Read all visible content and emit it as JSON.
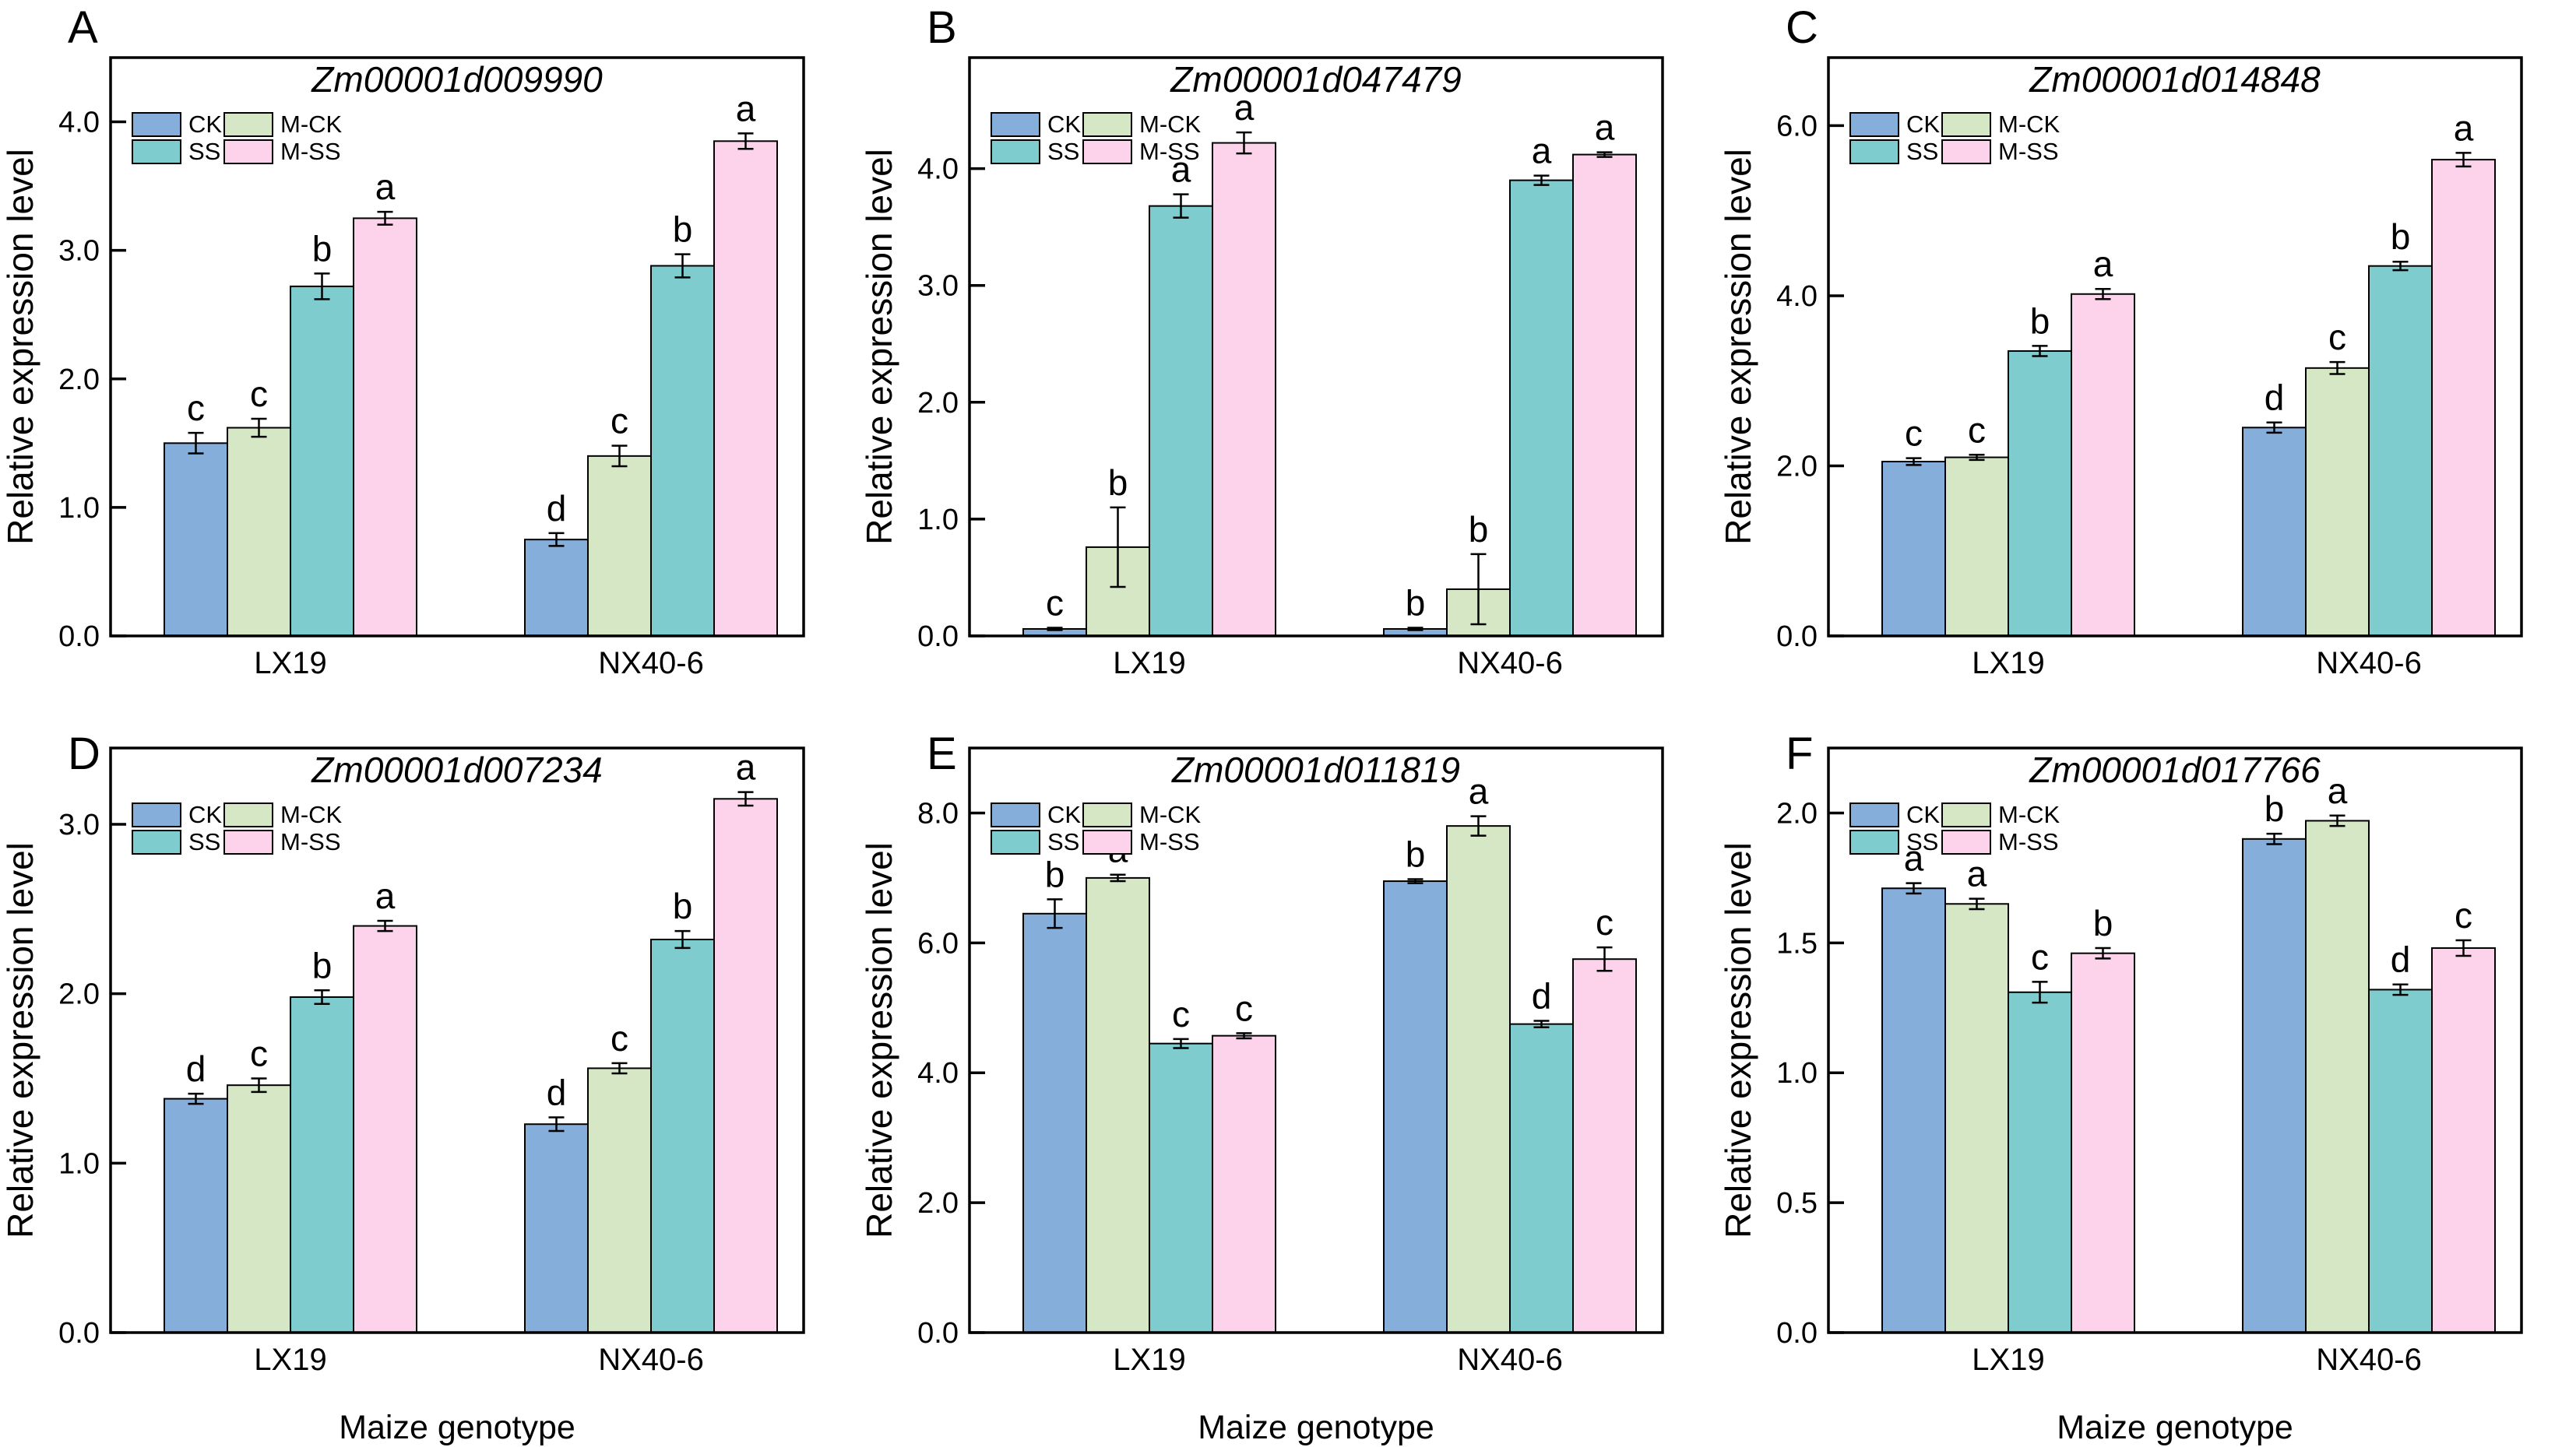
{
  "figure": {
    "ylabel": "Relative expression level",
    "xlabel": "Maize genotype",
    "categories": [
      "LX19",
      "NX40-6"
    ],
    "legend_grid": [
      [
        "CK",
        "M-CK"
      ],
      [
        "SS",
        "M-SS"
      ]
    ],
    "colors": {
      "CK": "#86AEDB",
      "M-CK": "#D6E7C6",
      "SS": "#7FCCCE",
      "M-SS": "#FDD3EC",
      "bar_border": "#000000",
      "frame": "#000000",
      "text": "#000000",
      "background": "#ffffff"
    }
  },
  "chart_data": [
    {
      "type": "bar",
      "letter": "A",
      "title": "Zm00001d009990",
      "ylabel": "Relative expression level",
      "xlabel": "",
      "categories": [
        "LX19",
        "NX40-6"
      ],
      "ylim": [
        0,
        4.5
      ],
      "yticks": [
        {
          "value": 0,
          "label": "0.0"
        },
        {
          "value": 1,
          "label": "1.0"
        },
        {
          "value": 2,
          "label": "2.0"
        },
        {
          "value": 3,
          "label": "3.0"
        },
        {
          "value": 4,
          "label": "4.0"
        }
      ],
      "series": [
        {
          "name": "CK",
          "values": [
            1.5,
            0.75
          ],
          "errors": [
            0.08,
            0.05
          ],
          "sig_letters": [
            "c",
            "d"
          ]
        },
        {
          "name": "M-CK",
          "values": [
            1.62,
            1.4
          ],
          "errors": [
            0.07,
            0.08
          ],
          "sig_letters": [
            "c",
            "c"
          ]
        },
        {
          "name": "SS",
          "values": [
            2.72,
            2.88
          ],
          "errors": [
            0.1,
            0.09
          ],
          "sig_letters": [
            "b",
            "b"
          ]
        },
        {
          "name": "M-SS",
          "values": [
            3.25,
            3.85
          ],
          "errors": [
            0.05,
            0.06
          ],
          "sig_letters": [
            "a",
            "a"
          ]
        }
      ]
    },
    {
      "type": "bar",
      "letter": "B",
      "title": "Zm00001d047479",
      "ylabel": "Relative expression level",
      "xlabel": "",
      "categories": [
        "LX19",
        "NX40-6"
      ],
      "ylim": [
        0,
        4.95
      ],
      "yticks": [
        {
          "value": 0,
          "label": "0.0"
        },
        {
          "value": 1,
          "label": "1.0"
        },
        {
          "value": 2,
          "label": "2.0"
        },
        {
          "value": 3,
          "label": "3.0"
        },
        {
          "value": 4,
          "label": "4.0"
        }
      ],
      "series": [
        {
          "name": "CK",
          "values": [
            0.06,
            0.06
          ],
          "errors": [
            0.01,
            0.01
          ],
          "sig_letters": [
            "c",
            "b"
          ]
        },
        {
          "name": "M-CK",
          "values": [
            0.76,
            0.4
          ],
          "errors": [
            0.34,
            0.3
          ],
          "sig_letters": [
            "b",
            "b"
          ]
        },
        {
          "name": "SS",
          "values": [
            3.68,
            3.9
          ],
          "errors": [
            0.1,
            0.04
          ],
          "sig_letters": [
            "a",
            "a"
          ]
        },
        {
          "name": "M-SS",
          "values": [
            4.22,
            4.12
          ],
          "errors": [
            0.09,
            0.02
          ],
          "sig_letters": [
            "a",
            "a"
          ]
        }
      ]
    },
    {
      "type": "bar",
      "letter": "C",
      "title": "Zm00001d014848",
      "ylabel": "Relative expression level",
      "xlabel": "",
      "categories": [
        "LX19",
        "NX40-6"
      ],
      "ylim": [
        0,
        6.8
      ],
      "yticks": [
        {
          "value": 0,
          "label": "0.0"
        },
        {
          "value": 2,
          "label": "2.0"
        },
        {
          "value": 4,
          "label": "4.0"
        },
        {
          "value": 6,
          "label": "6.0"
        }
      ],
      "series": [
        {
          "name": "CK",
          "values": [
            2.05,
            2.45
          ],
          "errors": [
            0.04,
            0.06
          ],
          "sig_letters": [
            "c",
            "d"
          ]
        },
        {
          "name": "M-CK",
          "values": [
            2.1,
            3.15
          ],
          "errors": [
            0.03,
            0.07
          ],
          "sig_letters": [
            "c",
            "c"
          ]
        },
        {
          "name": "SS",
          "values": [
            3.35,
            4.35
          ],
          "errors": [
            0.06,
            0.05
          ],
          "sig_letters": [
            "b",
            "b"
          ]
        },
        {
          "name": "M-SS",
          "values": [
            4.02,
            5.6
          ],
          "errors": [
            0.06,
            0.08
          ],
          "sig_letters": [
            "a",
            "a"
          ]
        }
      ]
    },
    {
      "type": "bar",
      "letter": "D",
      "title": "Zm00001d007234",
      "ylabel": "Relative expression level",
      "xlabel": "Maize genotype",
      "categories": [
        "LX19",
        "NX40-6"
      ],
      "ylim": [
        0,
        3.45
      ],
      "yticks": [
        {
          "value": 0,
          "label": "0.0"
        },
        {
          "value": 1,
          "label": "1.0"
        },
        {
          "value": 2,
          "label": "2.0"
        },
        {
          "value": 3,
          "label": "3.0"
        }
      ],
      "series": [
        {
          "name": "CK",
          "values": [
            1.38,
            1.23
          ],
          "errors": [
            0.03,
            0.04
          ],
          "sig_letters": [
            "d",
            "d"
          ]
        },
        {
          "name": "M-CK",
          "values": [
            1.46,
            1.56
          ],
          "errors": [
            0.04,
            0.03
          ],
          "sig_letters": [
            "c",
            "c"
          ]
        },
        {
          "name": "SS",
          "values": [
            1.98,
            2.32
          ],
          "errors": [
            0.04,
            0.05
          ],
          "sig_letters": [
            "b",
            "b"
          ]
        },
        {
          "name": "M-SS",
          "values": [
            2.4,
            3.15
          ],
          "errors": [
            0.03,
            0.04
          ],
          "sig_letters": [
            "a",
            "a"
          ]
        }
      ]
    },
    {
      "type": "bar",
      "letter": "E",
      "title": "Zm00001d011819",
      "ylabel": "Relative expression level",
      "xlabel": "Maize genotype",
      "categories": [
        "LX19",
        "NX40-6"
      ],
      "ylim": [
        0,
        9.0
      ],
      "yticks": [
        {
          "value": 0,
          "label": "0.0"
        },
        {
          "value": 2,
          "label": "2.0"
        },
        {
          "value": 4,
          "label": "4.0"
        },
        {
          "value": 6,
          "label": "6.0"
        },
        {
          "value": 8,
          "label": "8.0"
        }
      ],
      "series": [
        {
          "name": "CK",
          "values": [
            6.45,
            6.95
          ],
          "errors": [
            0.22,
            0.03
          ],
          "sig_letters": [
            "b",
            "b"
          ]
        },
        {
          "name": "M-CK",
          "values": [
            7.0,
            7.8
          ],
          "errors": [
            0.05,
            0.15
          ],
          "sig_letters": [
            "a",
            "a"
          ]
        },
        {
          "name": "SS",
          "values": [
            4.45,
            4.75
          ],
          "errors": [
            0.07,
            0.05
          ],
          "sig_letters": [
            "c",
            "d"
          ]
        },
        {
          "name": "M-SS",
          "values": [
            4.57,
            5.75
          ],
          "errors": [
            0.04,
            0.18
          ],
          "sig_letters": [
            "c",
            "c"
          ]
        }
      ]
    },
    {
      "type": "bar",
      "letter": "F",
      "title": "Zm00001d017766",
      "ylabel": "Relative expression level",
      "xlabel": "Maize genotype",
      "categories": [
        "LX19",
        "NX40-6"
      ],
      "ylim": [
        0,
        2.25
      ],
      "yticks": [
        {
          "value": 0,
          "label": "0.0"
        },
        {
          "value": 0.5,
          "label": "0.5"
        },
        {
          "value": 1,
          "label": "1.0"
        },
        {
          "value": 1.5,
          "label": "1.5"
        },
        {
          "value": 2,
          "label": "2.0"
        }
      ],
      "series": [
        {
          "name": "CK",
          "values": [
            1.71,
            1.9
          ],
          "errors": [
            0.02,
            0.02
          ],
          "sig_letters": [
            "a",
            "b"
          ]
        },
        {
          "name": "M-CK",
          "values": [
            1.65,
            1.97
          ],
          "errors": [
            0.02,
            0.02
          ],
          "sig_letters": [
            "a",
            "a"
          ]
        },
        {
          "name": "SS",
          "values": [
            1.31,
            1.32
          ],
          "errors": [
            0.04,
            0.02
          ],
          "sig_letters": [
            "c",
            "d"
          ]
        },
        {
          "name": "M-SS",
          "values": [
            1.46,
            1.48
          ],
          "errors": [
            0.02,
            0.03
          ],
          "sig_letters": [
            "b",
            "c"
          ]
        }
      ]
    }
  ]
}
